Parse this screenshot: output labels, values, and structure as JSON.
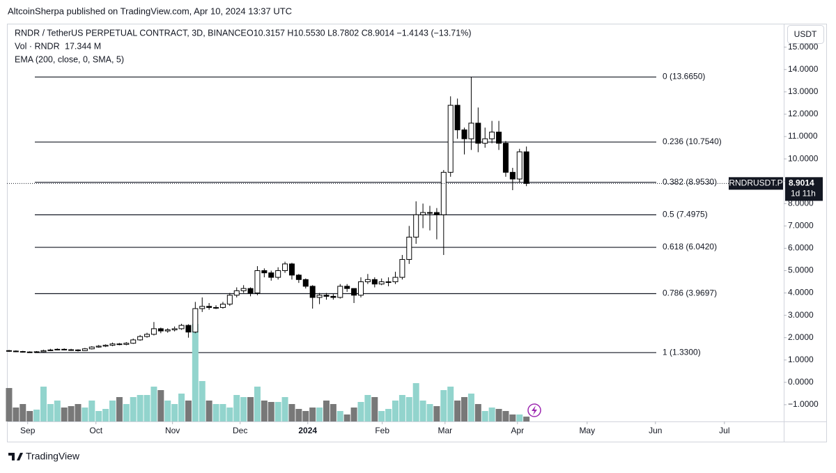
{
  "header": {
    "publisher": "AltcoinSherpa published on TradingView.com, Apr 10, 2024 13:37 UTC"
  },
  "chart_data": {
    "type": "candlestick",
    "title": "RNDR / TetherUS PERPETUAL CONTRACT, 3D, BINANCE",
    "ohlc_legend": "O10.3157 H10.5530 L8.7802 C8.9014 −1.4143 (−13.71%)",
    "volume_legend": {
      "label": "Vol · RNDR",
      "value": "17.344 M"
    },
    "indicator_legend": "EMA (200, close, 0, SMA, 5)",
    "currency": "USDT",
    "symbol": "RNDRUSDT.P",
    "last_price_label": "8.9014",
    "countdown": "1d 11h",
    "up_color": "#ffffff",
    "down_color": "#000000",
    "volume_up_color": "#92d4cd",
    "volume_down_color": "#787878",
    "open": [
      1.42,
      1.4,
      1.38,
      1.36,
      1.35,
      1.37,
      1.42,
      1.45,
      1.48,
      1.46,
      1.45,
      1.42,
      1.5,
      1.58,
      1.62,
      1.66,
      1.72,
      1.7,
      1.75,
      1.9,
      2.05,
      2.15,
      2.4,
      2.3,
      2.35,
      2.4,
      2.55,
      2.25,
      3.3,
      3.4,
      3.35,
      3.35,
      3.5,
      3.9,
      4.1,
      4.2,
      4.0,
      5.0,
      4.9,
      4.7,
      5.0,
      5.3,
      4.8,
      4.6,
      4.3,
      3.8,
      3.9,
      3.85,
      3.8,
      4.3,
      4.2,
      3.9,
      4.5,
      4.6,
      4.4,
      4.5,
      4.5,
      4.7,
      5.5,
      6.5,
      7.5,
      7.6,
      7.6,
      7.5,
      9.4,
      12.4,
      11.3,
      10.9,
      11.6,
      10.7,
      10.9,
      11.2,
      10.7,
      9.4,
      9.1,
      10.3157
    ],
    "high": [
      1.45,
      1.43,
      1.41,
      1.39,
      1.4,
      1.46,
      1.5,
      1.52,
      1.52,
      1.5,
      1.48,
      1.54,
      1.62,
      1.67,
      1.7,
      1.78,
      1.76,
      1.8,
      1.96,
      2.12,
      2.22,
      2.7,
      2.45,
      2.42,
      2.5,
      2.62,
      2.6,
      3.6,
      3.8,
      3.55,
      3.45,
      3.6,
      4.0,
      4.25,
      4.35,
      4.25,
      5.2,
      5.1,
      5.0,
      5.15,
      5.4,
      5.35,
      4.85,
      4.65,
      4.35,
      4.0,
      4.0,
      3.95,
      4.4,
      4.4,
      4.2,
      4.7,
      4.85,
      4.7,
      4.65,
      4.7,
      4.95,
      5.7,
      7.0,
      8.1,
      8.0,
      7.9,
      7.8,
      9.5,
      12.8,
      12.7,
      11.4,
      13.665,
      12.3,
      11.4,
      11.7,
      11.7,
      10.8,
      9.6,
      10.45,
      10.553
    ],
    "low": [
      1.36,
      1.35,
      1.33,
      1.32,
      1.33,
      1.35,
      1.4,
      1.43,
      1.43,
      1.41,
      1.38,
      1.4,
      1.47,
      1.55,
      1.58,
      1.62,
      1.66,
      1.66,
      1.72,
      1.86,
      2.0,
      2.1,
      2.2,
      2.22,
      2.28,
      2.35,
      2.0,
      2.2,
      3.15,
      3.25,
      3.28,
      3.3,
      3.42,
      3.8,
      4.0,
      3.85,
      3.9,
      4.7,
      4.55,
      4.6,
      4.9,
      4.6,
      4.45,
      4.2,
      3.3,
      3.5,
      3.7,
      3.7,
      3.75,
      4.05,
      3.55,
      3.8,
      4.4,
      4.25,
      4.35,
      4.3,
      4.4,
      4.6,
      5.3,
      6.2,
      6.9,
      6.8,
      6.4,
      5.7,
      9.2,
      10.9,
      10.2,
      10.4,
      10.3,
      10.5,
      10.7,
      10.4,
      9.2,
      8.6,
      8.95,
      8.7802
    ],
    "close": [
      1.4,
      1.38,
      1.36,
      1.35,
      1.37,
      1.42,
      1.45,
      1.48,
      1.46,
      1.45,
      1.42,
      1.5,
      1.58,
      1.62,
      1.66,
      1.72,
      1.7,
      1.75,
      1.9,
      2.05,
      2.15,
      2.4,
      2.3,
      2.35,
      2.4,
      2.55,
      2.25,
      3.3,
      3.4,
      3.35,
      3.35,
      3.5,
      3.9,
      4.1,
      4.2,
      4.0,
      5.0,
      4.9,
      4.7,
      5.0,
      5.3,
      4.8,
      4.6,
      4.3,
      3.8,
      3.9,
      3.85,
      3.8,
      4.3,
      4.2,
      3.9,
      4.5,
      4.6,
      4.4,
      4.5,
      4.5,
      4.7,
      5.5,
      6.5,
      7.5,
      7.6,
      7.6,
      7.5,
      9.4,
      12.4,
      11.3,
      10.9,
      11.6,
      10.7,
      10.9,
      11.2,
      10.7,
      9.4,
      9.1,
      10.3157,
      8.9014
    ],
    "volume": [
      120,
      50,
      62.5,
      37.5,
      42.5,
      125,
      62.5,
      75,
      50,
      55,
      62.5,
      50,
      75,
      37.5,
      45,
      75,
      87.5,
      62.5,
      87.5,
      95,
      95,
      125,
      112.5,
      75,
      62.5,
      100,
      75,
      350,
      145,
      75,
      62.5,
      62.5,
      50,
      95,
      87.5,
      87.5,
      125,
      75,
      70,
      70,
      87.5,
      62.5,
      45,
      37.5,
      50,
      50,
      75,
      62.5,
      37.5,
      25,
      50,
      70,
      95,
      87.5,
      37.5,
      45,
      75,
      95,
      87.5,
      137.5,
      75,
      62.5,
      55,
      112.5,
      125,
      75,
      87.5,
      100,
      62.5,
      37.5,
      50,
      45,
      37.5,
      25,
      25,
      17.344
    ],
    "fib_levels": [
      {
        "label": "0 (13.6650)",
        "value": 13.665
      },
      {
        "label": "0.236 (10.7540)",
        "value": 10.754
      },
      {
        "label": "0.382 (8.9530)",
        "value": 8.953
      },
      {
        "label": "0.5 (7.4975)",
        "value": 7.4975
      },
      {
        "label": "0.618 (6.0420)",
        "value": 6.042
      },
      {
        "label": "0.786 (3.9697)",
        "value": 3.9697
      },
      {
        "label": "1 (1.3300)",
        "value": 1.33
      }
    ],
    "ylim": [
      -1.75,
      16.02
    ],
    "yticks": [
      {
        "value": -1,
        "label": "−1.0000"
      },
      {
        "value": 0,
        "label": "0.0000"
      },
      {
        "value": 1,
        "label": "1.0000"
      },
      {
        "value": 2,
        "label": "2.0000"
      },
      {
        "value": 3,
        "label": "3.0000"
      },
      {
        "value": 4,
        "label": "4.0000"
      },
      {
        "value": 5,
        "label": "5.0000"
      },
      {
        "value": 6,
        "label": "6.0000"
      },
      {
        "value": 7,
        "label": "7.0000"
      },
      {
        "value": 8,
        "label": "8.0000"
      },
      {
        "value": 9,
        "label": "9.0000"
      },
      {
        "value": 10,
        "label": "10.0000"
      },
      {
        "value": 11,
        "label": "11.0000"
      },
      {
        "value": 12,
        "label": "12.0000"
      },
      {
        "value": 13,
        "label": "13.0000"
      },
      {
        "value": 14,
        "label": "14.0000"
      },
      {
        "value": 15,
        "label": "15.0000"
      }
    ],
    "xlim": [
      -0.3,
      112.3
    ],
    "xticks": [
      {
        "value": 2.7,
        "label": "Sep"
      },
      {
        "value": 12.6,
        "label": "Oct"
      },
      {
        "value": 23.7,
        "label": "Nov"
      },
      {
        "value": 33.5,
        "label": "Dec"
      },
      {
        "value": 43.3,
        "label": "2024"
      },
      {
        "value": 54.1,
        "label": "Feb"
      },
      {
        "value": 63.2,
        "label": "Mar"
      },
      {
        "value": 73.7,
        "label": "Apr"
      },
      {
        "value": 83.8,
        "label": "May"
      },
      {
        "value": 93.7,
        "label": "Jun"
      },
      {
        "value": 103.7,
        "label": "Jul"
      }
    ]
  },
  "footer": {
    "brand": "TradingView"
  }
}
